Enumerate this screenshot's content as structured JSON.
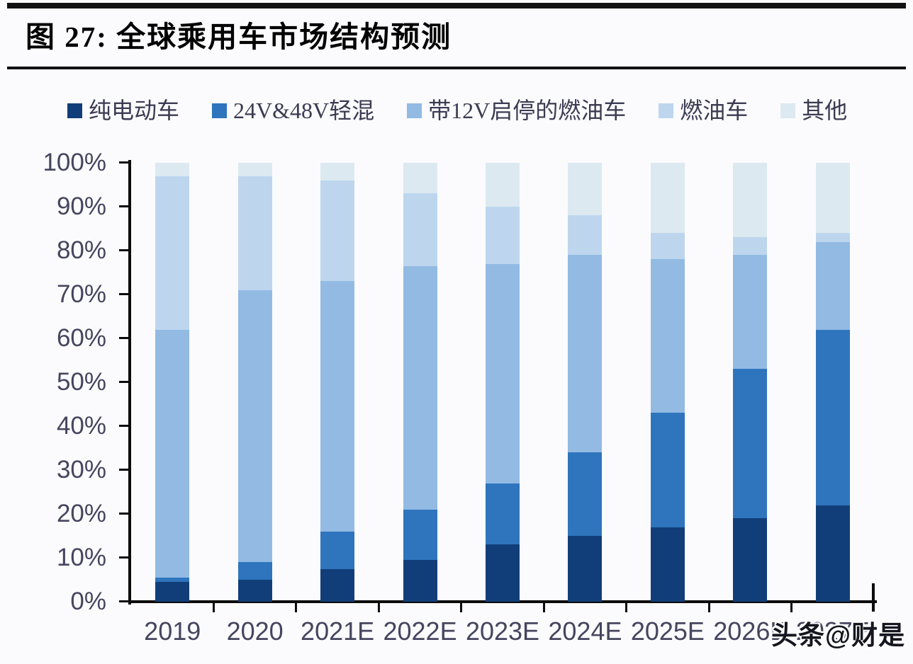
{
  "header": {
    "title": "图 27:  全球乘用车市场结构预测"
  },
  "watermark": {
    "text": "头条@财是"
  },
  "colors": {
    "page_background": "#fbfbfd",
    "axis": "#0c0c0c",
    "tick_label": "#45455f",
    "legend_text": "#3b3b52",
    "title_text": "#000000"
  },
  "chart_data": {
    "type": "bar",
    "variant": "stacked-100-percent",
    "title": "全球乘用车市场结构预测",
    "xlabel": "",
    "ylabel": "",
    "ylim": [
      0,
      100
    ],
    "grid": false,
    "legend_position": "top",
    "categories": [
      "2019",
      "2020",
      "2021E",
      "2022E",
      "2023E",
      "2024E",
      "2025E",
      "2026E",
      "2027E"
    ],
    "yticks": [
      "0%",
      "10%",
      "20%",
      "30%",
      "40%",
      "50%",
      "60%",
      "70%",
      "80%",
      "90%",
      "100%"
    ],
    "series": [
      {
        "name": "纯电动车",
        "color": "#113e78",
        "values": [
          4.5,
          5,
          7.5,
          9.5,
          13,
          15,
          17,
          19,
          22
        ]
      },
      {
        "name": "24V&48V轻混",
        "color": "#2e75bd",
        "values": [
          1,
          4,
          8.5,
          11.5,
          14,
          19,
          26,
          34,
          40
        ]
      },
      {
        "name": "带12V启停的燃油车",
        "color": "#92bae3",
        "values": [
          56.5,
          62,
          57,
          55.5,
          50,
          45,
          35,
          26,
          20
        ]
      },
      {
        "name": "燃油车",
        "color": "#bdd6ee",
        "values": [
          35,
          26,
          23,
          16.5,
          13,
          9,
          6,
          4,
          2
        ]
      },
      {
        "name": "其他",
        "color": "#dce9f1",
        "values": [
          3,
          3,
          4,
          7,
          10,
          12,
          16,
          17,
          16
        ]
      }
    ]
  }
}
